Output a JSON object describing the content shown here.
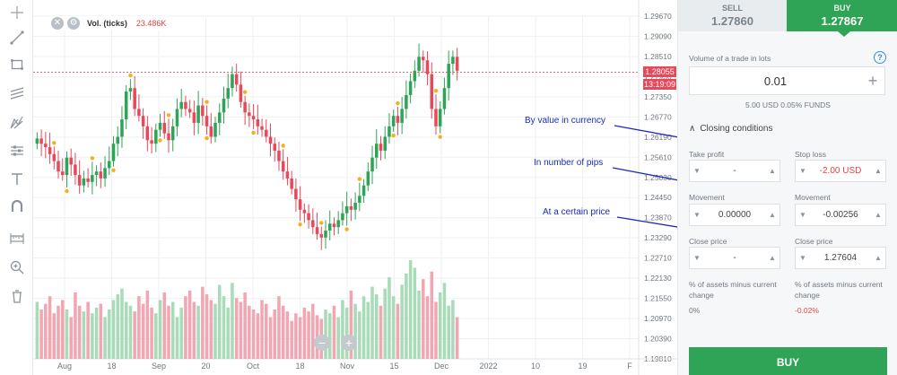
{
  "chart_legend": {
    "close_symbol": "✕",
    "settings_symbol": "⚙",
    "name": "Vol. (ticks)",
    "value": "23.486K"
  },
  "zoom": {
    "minus": "−",
    "plus": "+"
  },
  "price_tags": {
    "current": "1.28055",
    "timer": "13:19:09"
  },
  "colors": {
    "up": "#2fa456",
    "down": "#e8495a",
    "up_vol": "#a8dbb8",
    "down_vol": "#f1a6b1",
    "annotation": "#1a2bb8"
  },
  "annotations": [
    "By value in currency",
    "In number of pips",
    "At a certain price"
  ],
  "toolbar_icons": [
    "crosshair-icon",
    "trend-line-icon",
    "rectangle-icon",
    "channel-icon",
    "fib-icon",
    "pattern-icon",
    "text-icon",
    "magnet-icon",
    "ruler-icon",
    "zoom-icon",
    "trash-icon"
  ],
  "chart_data": {
    "type": "candlestick",
    "y_ticks": [
      "1.29670",
      "1.29090",
      "1.28510",
      "1.27930",
      "1.27350",
      "1.26770",
      "1.26190",
      "1.25610",
      "1.25030",
      "1.24450",
      "1.23870",
      "1.23290",
      "1.22710",
      "1.22130",
      "1.21550",
      "1.20970",
      "1.20390",
      "1.19810"
    ],
    "x_ticks": [
      "Aug",
      "18",
      "Sep",
      "20",
      "Oct",
      "18",
      "Nov",
      "15",
      "Dec",
      "2022",
      "10",
      "19",
      "F"
    ],
    "ylim": [
      1.1981,
      1.2967
    ],
    "current_price": 1.28055,
    "closes": [
      1.2615,
      1.26,
      1.259,
      1.257,
      1.255,
      1.252,
      1.251,
      1.256,
      1.254,
      1.251,
      1.248,
      1.25,
      1.249,
      1.251,
      1.252,
      1.25,
      1.253,
      1.255,
      1.26,
      1.262,
      1.267,
      1.275,
      1.276,
      1.27,
      1.268,
      1.265,
      1.261,
      1.26,
      1.264,
      1.266,
      1.263,
      1.261,
      1.265,
      1.27,
      1.272,
      1.27,
      1.269,
      1.266,
      1.271,
      1.268,
      1.265,
      1.262,
      1.266,
      1.269,
      1.273,
      1.276,
      1.28,
      1.277,
      1.272,
      1.269,
      1.268,
      1.267,
      1.265,
      1.264,
      1.262,
      1.26,
      1.258,
      1.255,
      1.252,
      1.25,
      1.247,
      1.244,
      1.241,
      1.24,
      1.238,
      1.236,
      1.234,
      1.233,
      1.235,
      1.237,
      1.236,
      1.238,
      1.24,
      1.242,
      1.241,
      1.243,
      1.245,
      1.248,
      1.252,
      1.256,
      1.26,
      1.258,
      1.262,
      1.265,
      1.268,
      1.266,
      1.27,
      1.274,
      1.278,
      1.281,
      1.285,
      1.284,
      1.28,
      1.27,
      1.265,
      1.27,
      1.276,
      1.283,
      1.285,
      1.281
    ],
    "volumes": [
      30,
      26,
      29,
      33,
      24,
      28,
      31,
      26,
      22,
      35,
      28,
      25,
      30,
      24,
      27,
      29,
      22,
      26,
      31,
      34,
      37,
      30,
      28,
      25,
      33,
      29,
      36,
      27,
      24,
      31,
      35,
      28,
      30,
      22,
      27,
      33,
      36,
      30,
      28,
      38,
      34,
      31,
      29,
      39,
      33,
      27,
      40,
      32,
      30,
      35,
      28,
      26,
      24,
      31,
      29,
      22,
      26,
      33,
      28,
      25,
      20,
      24,
      22,
      27,
      25,
      29,
      23,
      21,
      26,
      24,
      28,
      22,
      31,
      27,
      36,
      29,
      25,
      33,
      30,
      38,
      34,
      28,
      37,
      43,
      33,
      29,
      39,
      45,
      52,
      48,
      36,
      42,
      33,
      46,
      30,
      35,
      40,
      28,
      31,
      22
    ]
  },
  "panel": {
    "sell_label": "SELL",
    "sell_price": "1.27860",
    "buy_label": "BUY",
    "buy_price": "1.27867",
    "volume_label": "Volume of a trade in lots",
    "help_symbol": "?",
    "volume_value": "0.01",
    "plus_symbol": "+",
    "volume_info": "5.00 USD   0.05% FUNDS",
    "caret_symbol": "∧",
    "closing_conditions": "Closing conditions",
    "take_profit_label": "Take profit",
    "take_profit_value": "-",
    "stop_loss_label": "Stop loss",
    "stop_loss_value": "-2.00 USD",
    "movement_label_left": "Movement",
    "movement_value_left": "0.00000",
    "movement_label_right": "Movement",
    "movement_value_right": "-0.00256",
    "close_price_label_left": "Close price",
    "close_price_value_left": "-",
    "close_price_label_right": "Close price",
    "close_price_value_right": "1.27604",
    "assets_note_left": "% of assets minus current change",
    "assets_pct_left": "0%",
    "assets_note_right": "% of assets minus current change",
    "assets_pct_right": "-0.02%",
    "down_arrow": "▼",
    "up_arrow": "▲",
    "buy_button": "BUY"
  }
}
